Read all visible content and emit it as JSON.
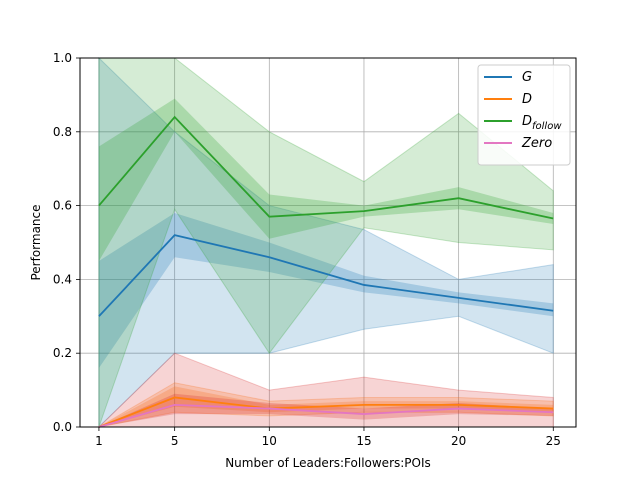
{
  "chart_data": {
    "type": "line",
    "xlabel": "Number of Leaders:Followers:POIs",
    "ylabel": "Performance",
    "x": [
      1,
      5,
      10,
      15,
      20,
      25
    ],
    "xticks": [
      "1",
      "5",
      "10",
      "15",
      "20",
      "25"
    ],
    "yticks": [
      "0.0",
      "0.2",
      "0.4",
      "0.6",
      "0.8",
      "1.0"
    ],
    "xlim": [
      0,
      26.2
    ],
    "ylim": [
      0,
      1.0
    ],
    "grid": true,
    "legend_position": "top-right",
    "series": [
      {
        "name": "G",
        "legend_main": "G",
        "legend_sub": "",
        "color": "#1f77b4",
        "values": [
          0.3,
          0.52,
          0.46,
          0.385,
          0.35,
          0.315
        ],
        "ci_inner_low": [
          0.16,
          0.46,
          0.42,
          0.365,
          0.335,
          0.3
        ],
        "ci_inner_high": [
          0.45,
          0.58,
          0.5,
          0.41,
          0.365,
          0.335
        ],
        "ci_outer_low": [
          0.0,
          0.2,
          0.2,
          0.265,
          0.3,
          0.2
        ],
        "ci_outer_high": [
          1.0,
          0.8,
          0.6,
          0.535,
          0.4,
          0.44
        ]
      },
      {
        "name": "D",
        "legend_main": "D",
        "legend_sub": "",
        "color": "#ff7f0e",
        "values": [
          0.0,
          0.08,
          0.05,
          0.06,
          0.06,
          0.05
        ],
        "ci_inner_low": [
          0.0,
          0.055,
          0.04,
          0.05,
          0.05,
          0.04
        ],
        "ci_inner_high": [
          0.0,
          0.11,
          0.06,
          0.07,
          0.07,
          0.06
        ],
        "ci_outer_low": [
          0.0,
          0.04,
          0.03,
          0.04,
          0.04,
          0.03
        ],
        "ci_outer_high": [
          0.0,
          0.12,
          0.07,
          0.08,
          0.08,
          0.07
        ]
      },
      {
        "name": "D_follow",
        "legend_main": "D",
        "legend_sub": "follow",
        "color": "#2ca02c",
        "values": [
          0.6,
          0.84,
          0.57,
          0.585,
          0.62,
          0.565
        ],
        "ci_inner_low": [
          0.45,
          0.8,
          0.51,
          0.57,
          0.59,
          0.55
        ],
        "ci_inner_high": [
          0.76,
          0.89,
          0.63,
          0.6,
          0.65,
          0.58
        ],
        "ci_outer_low": [
          0.0,
          0.59,
          0.2,
          0.54,
          0.5,
          0.48
        ],
        "ci_outer_high": [
          1.0,
          1.0,
          0.8,
          0.665,
          0.85,
          0.64
        ]
      },
      {
        "name": "Zero",
        "legend_main": "Zero",
        "legend_sub": "",
        "color": "#e377c2",
        "fill_color": "#d62728",
        "values": [
          0.0,
          0.06,
          0.05,
          0.035,
          0.05,
          0.04
        ],
        "ci_inner_low": [
          0.0,
          0.035,
          0.035,
          0.02,
          0.035,
          0.03
        ],
        "ci_inner_high": [
          0.0,
          0.09,
          0.065,
          0.05,
          0.065,
          0.05
        ],
        "ci_outer_low": [
          0.0,
          0.0,
          0.0,
          0.0,
          0.0,
          0.0
        ],
        "ci_outer_high": [
          0.0,
          0.2,
          0.1,
          0.135,
          0.1,
          0.08
        ]
      }
    ]
  }
}
